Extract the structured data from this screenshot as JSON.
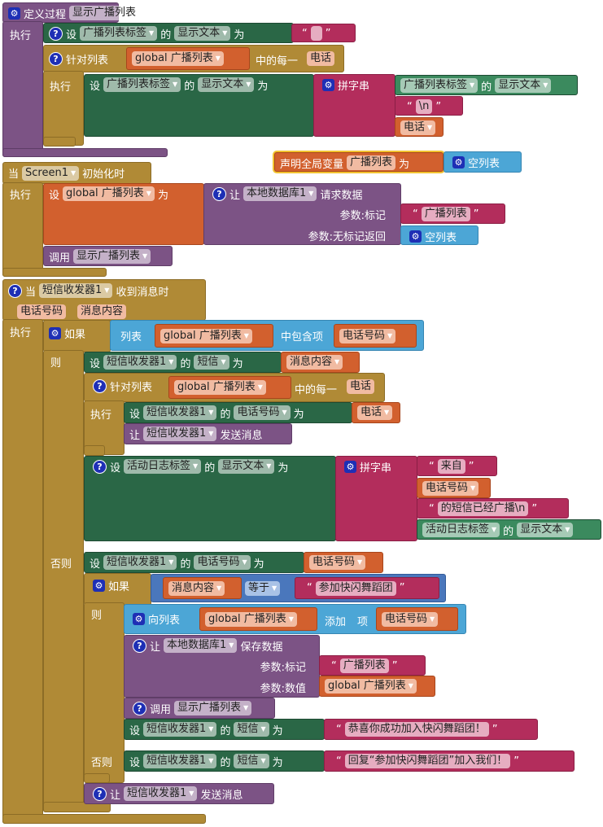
{
  "procedure": {
    "label": "定义过程",
    "name": "显示广播列表",
    "do": "执行",
    "set1": {
      "set": "设",
      "component": "广播列表标签",
      "of": "的",
      "property": "显示文本",
      "to": "为",
      "value": ""
    },
    "foreach": {
      "label": "针对列表",
      "list": "global 广播列表",
      "each": "中的每一",
      "var": "电话",
      "do": "执行",
      "set": {
        "set": "设",
        "component": "广播列表标签",
        "of": "的",
        "property": "显示文本",
        "to": "为",
        "join": {
          "label": "拼字串",
          "get_component": "广播列表标签",
          "get_of": "的",
          "get_property": "显示文本",
          "newline": "\\n",
          "var": "电话"
        }
      }
    }
  },
  "global_var": {
    "label": "声明全局变量",
    "name": "广播列表",
    "to": "为",
    "value": "空列表"
  },
  "screen_init": {
    "when": "当",
    "component": "Screen1",
    "event": "初始化时",
    "do": "执行",
    "set": {
      "set": "设",
      "var": "global 广播列表",
      "to": "为"
    },
    "call": {
      "let": "让",
      "component": "本地数据库1",
      "method": "请求数据",
      "param_tag": "参数:标记",
      "tag": "广播列表",
      "param_default": "参数:无标记返回",
      "default": "空列表"
    },
    "invoke": {
      "label": "调用",
      "proc": "显示广播列表"
    }
  },
  "sms_event": {
    "when": "当",
    "component": "短信收发器1",
    "event": "收到消息时",
    "params": [
      "电话号码",
      "消息内容"
    ],
    "do": "执行",
    "if": {
      "label": "如果",
      "then": "则",
      "else": "否则",
      "cond": {
        "list": "列表",
        "list_var": "global 广播列表",
        "contains": "中包含项",
        "item": "电话号码"
      },
      "then_set": {
        "set": "设",
        "component": "短信收发器1",
        "of": "的",
        "property": "短信",
        "to": "为",
        "value": "消息内容"
      },
      "foreach": {
        "label": "针对列表",
        "list": "global 广播列表",
        "each": "中的每一",
        "var": "电话",
        "do": "执行",
        "set": {
          "set": "设",
          "component": "短信收发器1",
          "of": "的",
          "property": "电话号码",
          "to": "为",
          "value": "电话"
        },
        "send": {
          "let": "让",
          "component": "短信收发器1",
          "method": "发送消息"
        }
      },
      "log_set": {
        "set": "设",
        "component": "活动日志标签",
        "of": "的",
        "property": "显示文本",
        "to": "为",
        "join": {
          "label": "拼字串",
          "text1": "来自",
          "var": "电话号码",
          "text2": "的短信已经广播\\n",
          "get_component": "活动日志标签",
          "get_of": "的",
          "get_property": "显示文本"
        }
      },
      "else_set": {
        "set": "设",
        "component": "短信收发器1",
        "of": "的",
        "property": "电话号码",
        "to": "为",
        "value": "电话号码"
      },
      "inner_if": {
        "label": "如果",
        "then": "则",
        "else": "否则",
        "cond": {
          "left": "消息内容",
          "op": "等于",
          "right": "参加快闪舞蹈团"
        },
        "add": {
          "label": "向列表",
          "list": "global 广播列表",
          "add": "添加",
          "item_label": "项",
          "item": "电话号码"
        },
        "store": {
          "let": "让",
          "component": "本地数据库1",
          "method": "保存数据",
          "param_tag": "参数:标记",
          "tag": "广播列表",
          "param_value": "参数:数值",
          "value": "global 广播列表"
        },
        "invoke": {
          "label": "调用",
          "proc": "显示广播列表"
        },
        "then_msg": {
          "set": "设",
          "component": "短信收发器1",
          "of": "的",
          "property": "短信",
          "to": "为",
          "value": "恭喜你成功加入快闪舞蹈团！"
        },
        "else_msg": {
          "set": "设",
          "component": "短信收发器1",
          "of": "的",
          "property": "短信",
          "to": "为",
          "value": "回复“参加快闪舞蹈团”加入我们！"
        }
      },
      "send": {
        "let": "让",
        "component": "短信收发器1",
        "method": "发送消息"
      }
    }
  }
}
